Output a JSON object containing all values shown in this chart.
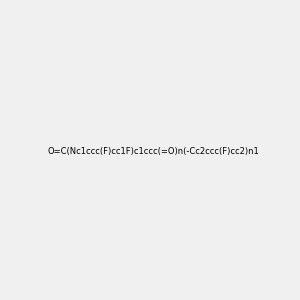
{
  "smiles": "O=C(Nc1ccc(F)cc1F)c1ccc(=O)n(-Cc2ccc(F)cc2)n1",
  "title": "",
  "background_color": "#f0f0f0",
  "bond_color": "#000000",
  "atom_colors": {
    "N": "#0000ff",
    "O": "#ff4500",
    "F": "#ff00ff",
    "H": "#708090",
    "C": "#000000"
  },
  "figsize": [
    3.0,
    3.0
  ],
  "dpi": 100
}
